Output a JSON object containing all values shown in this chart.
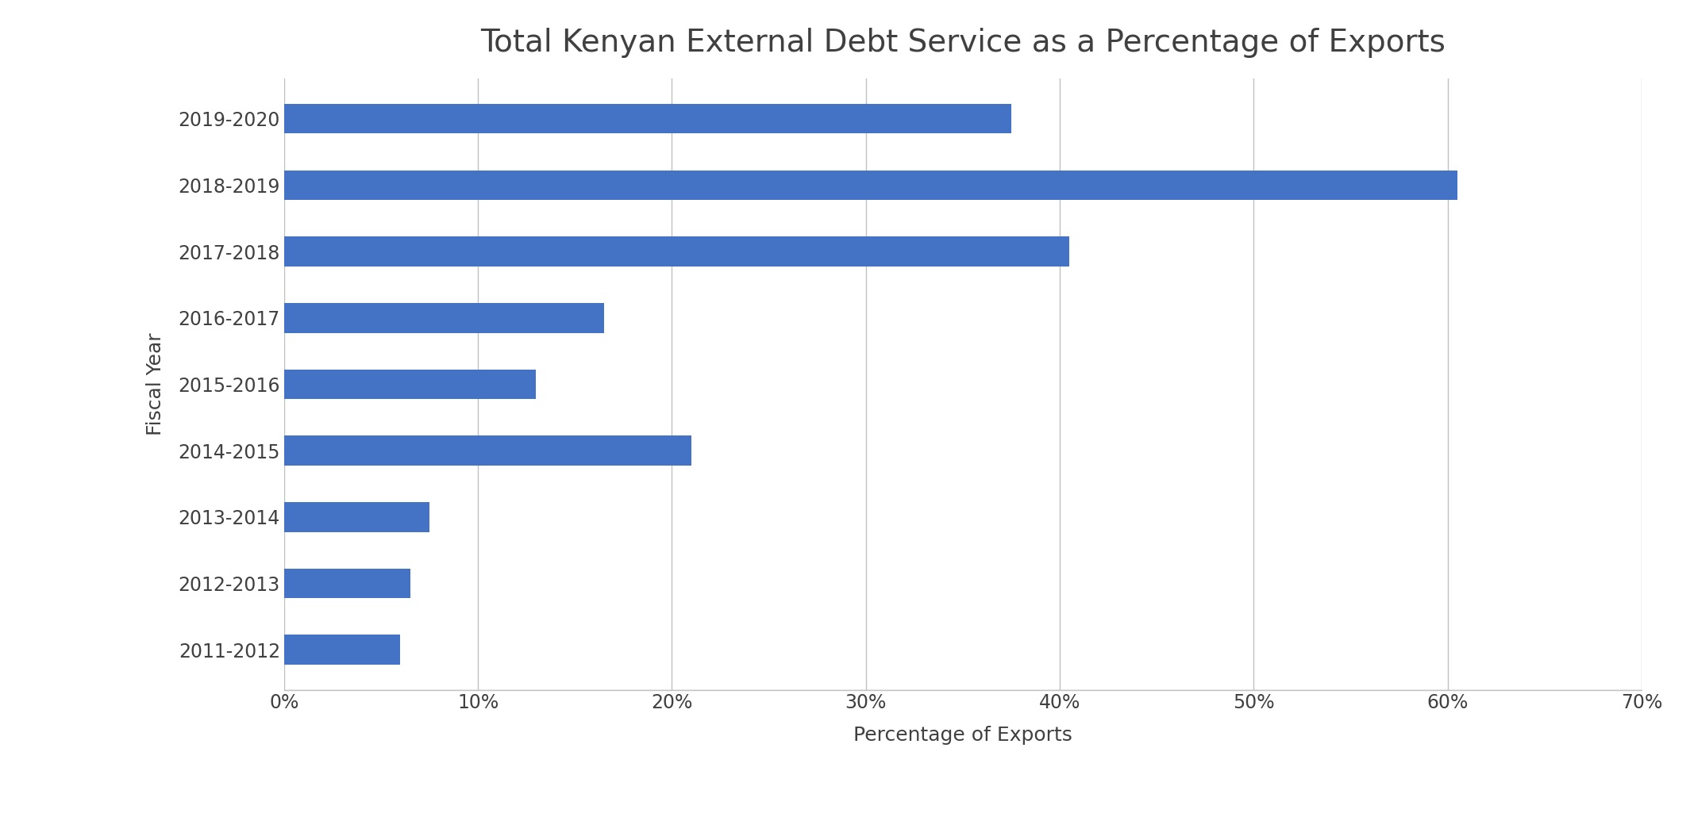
{
  "title": "Total Kenyan External Debt Service as a Percentage of Exports",
  "xlabel": "Percentage of Exports",
  "ylabel": "Fiscal Year",
  "categories": [
    "2011-2012",
    "2012-2013",
    "2013-2014",
    "2014-2015",
    "2015-2016",
    "2016-2017",
    "2017-2018",
    "2018-2019",
    "2019-2020"
  ],
  "values": [
    6.0,
    6.5,
    7.5,
    21.0,
    13.0,
    16.5,
    40.5,
    60.5,
    37.5
  ],
  "bar_color": "#4472C4",
  "xlim": [
    0,
    70
  ],
  "xticks": [
    0,
    10,
    20,
    30,
    40,
    50,
    60,
    70
  ],
  "xtick_labels": [
    "0%",
    "10%",
    "20%",
    "30%",
    "40%",
    "50%",
    "60%",
    "70%"
  ],
  "background_color": "#ffffff",
  "title_fontsize": 28,
  "axis_label_fontsize": 18,
  "tick_fontsize": 17,
  "bar_height": 0.45,
  "grid_color": "#c0c0c0",
  "text_color": "#404040"
}
